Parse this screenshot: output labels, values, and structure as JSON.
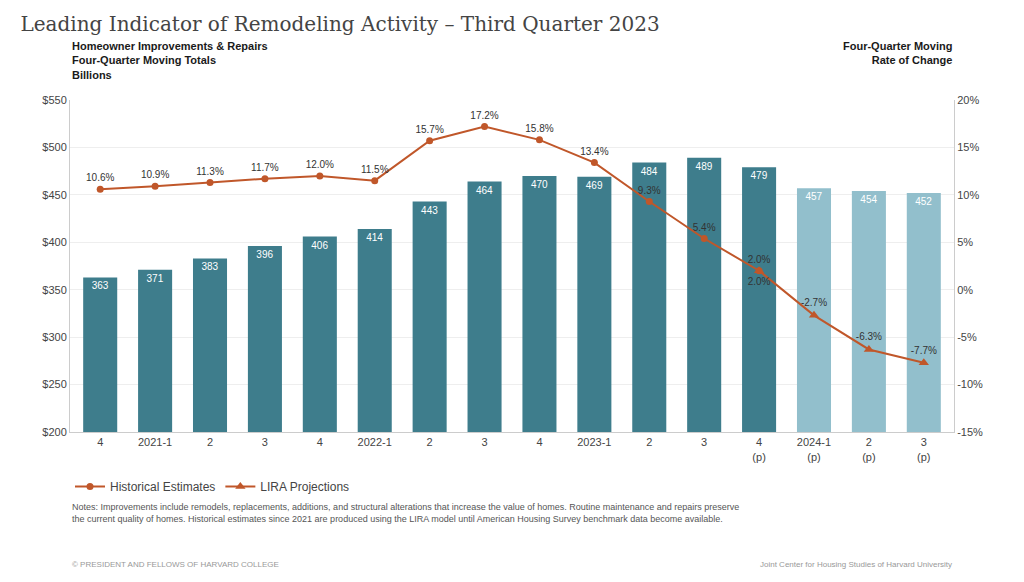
{
  "chart_data": {
    "type": "bar",
    "title": "Leading Indicator of Remodeling Activity – Third Quarter 2023",
    "ylabel": "Homeowner Improvements & Repairs\nFour-Quarter Moving Totals\nBillions",
    "y2label": "Four-Quarter Moving\nRate of Change",
    "categories": [
      "4",
      "2021-1",
      "2",
      "3",
      "4",
      "2022-1",
      "2",
      "3",
      "4",
      "2023-1",
      "2",
      "3",
      "4\n(p)",
      "2024-1\n(p)",
      "2\n(p)",
      "3\n(p)"
    ],
    "series": [
      {
        "type": "bar",
        "colors": [
          "#3e7d8c",
          "#3e7d8c",
          "#3e7d8c",
          "#3e7d8c",
          "#3e7d8c",
          "#3e7d8c",
          "#3e7d8c",
          "#3e7d8c",
          "#3e7d8c",
          "#3e7d8c",
          "#3e7d8c",
          "#3e7d8c",
          "#3e7d8c",
          "#92bfcc",
          "#92bfcc",
          "#92bfcc"
        ],
        "values": [
          363,
          371,
          383,
          396,
          406,
          414,
          443,
          464,
          470,
          469,
          484,
          489,
          479,
          457,
          454,
          452
        ]
      },
      {
        "name": "Historical Estimates",
        "type": "line",
        "axis": "y2",
        "color": "#c0572a",
        "marker": "circle",
        "values": [
          10.6,
          10.9,
          11.3,
          11.7,
          12.0,
          11.5,
          15.7,
          17.2,
          15.8,
          13.4,
          9.3,
          5.4,
          2.0,
          null,
          null,
          null
        ],
        "value_labels": [
          "10.6%",
          "10.9%",
          "11.3%",
          "11.7%",
          "12.0%",
          "11.5%",
          "15.7%",
          "17.2%",
          "15.8%",
          "13.4%",
          "9.3%",
          "5.4%",
          "2.0%",
          null,
          null,
          null
        ]
      },
      {
        "name": "LIRA Projections",
        "type": "line",
        "axis": "y2",
        "color": "#c0572a",
        "marker": "triangle-up",
        "values": [
          null,
          null,
          null,
          null,
          null,
          null,
          null,
          null,
          null,
          null,
          null,
          null,
          2.0,
          -2.7,
          -6.3,
          -7.7
        ],
        "value_labels": [
          null,
          null,
          null,
          null,
          null,
          null,
          null,
          null,
          null,
          null,
          null,
          null,
          "2.0%",
          "-2.7%",
          "-6.3%",
          "-7.7%"
        ]
      }
    ],
    "ylim": [
      200,
      550
    ],
    "yticks": [
      {
        "value": 200,
        "label": "$200"
      },
      {
        "value": 250,
        "label": "$250"
      },
      {
        "value": 300,
        "label": "$300"
      },
      {
        "value": 350,
        "label": "$350"
      },
      {
        "value": 400,
        "label": "$400"
      },
      {
        "value": 450,
        "label": "$450"
      },
      {
        "value": 500,
        "label": "$500"
      },
      {
        "value": 550,
        "label": "$550"
      }
    ],
    "y2lim": [
      -15,
      20
    ],
    "y2ticks": [
      {
        "value": -15,
        "label": "-15%"
      },
      {
        "value": -10,
        "label": "-10%"
      },
      {
        "value": -5,
        "label": "-5%"
      },
      {
        "value": 0,
        "label": "0%"
      },
      {
        "value": 5,
        "label": "5%"
      },
      {
        "value": 10,
        "label": "10%"
      },
      {
        "value": 15,
        "label": "15%"
      },
      {
        "value": 20,
        "label": "20%"
      }
    ],
    "grid": true,
    "data_labels": true,
    "legend": "lower left",
    "annotations": [
      "Notes: Improvements include remodels, replacements, additions, and structural alterations that increase the value of homes. Routine maintenance and repairs preserve\nthe current quality of homes. Historical estimates since 2021 are produced using the LIRA model until American Housing Survey benchmark data become available.",
      "© PRESIDENT AND FELLOWS OF HARVARD COLLEGE",
      "Joint Center for Housing Studies of Harvard University"
    ]
  }
}
